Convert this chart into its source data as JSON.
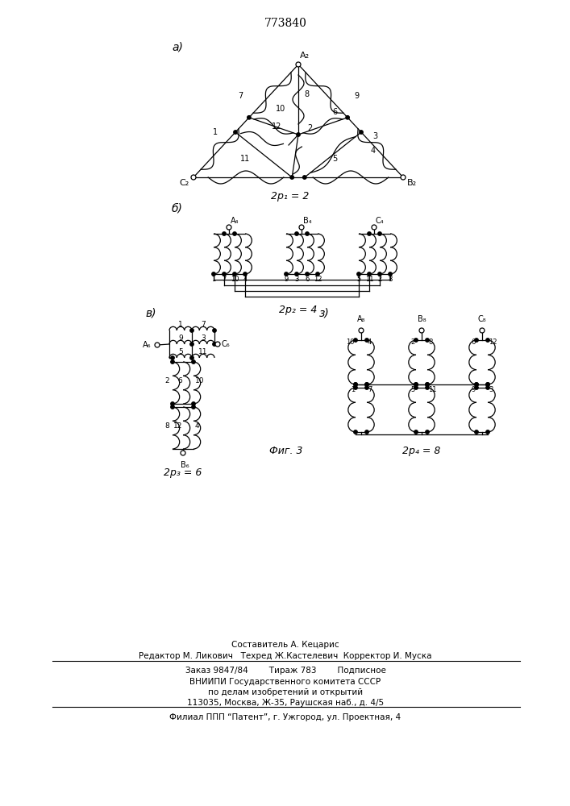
{
  "title": "773840",
  "bg_color": "#ffffff",
  "line_color": "#000000",
  "fig_label_a": "а)",
  "fig_label_b": "б)",
  "fig_label_v": "в)",
  "fig_label_g": "з)",
  "label_2p1": "2p₁ = 2",
  "label_2p2": "2p₂ = 4",
  "label_2p3": "2p₃ = 6",
  "label_2p4": "2p₄ = 8",
  "fig_caption": "Фиг. 3",
  "footer_line1": "Составитель А. Кецарис",
  "footer_line2": "Редактор М. Ликович   Техред Ж.Кастелевич  Корректор И. Муска",
  "footer_line3": "Заказ 9847/84        Тираж 783        Подписное",
  "footer_line4": "ВНИИПИ Государственного комитета СССР",
  "footer_line5": "по делам изобретений и открытий",
  "footer_line6": "113035, Москва, Ж-35, Раушская наб., д. 4/5",
  "footer_line7": "Филиал ППП “Патент”, г. Ужгород, ул. Проектная, 4"
}
